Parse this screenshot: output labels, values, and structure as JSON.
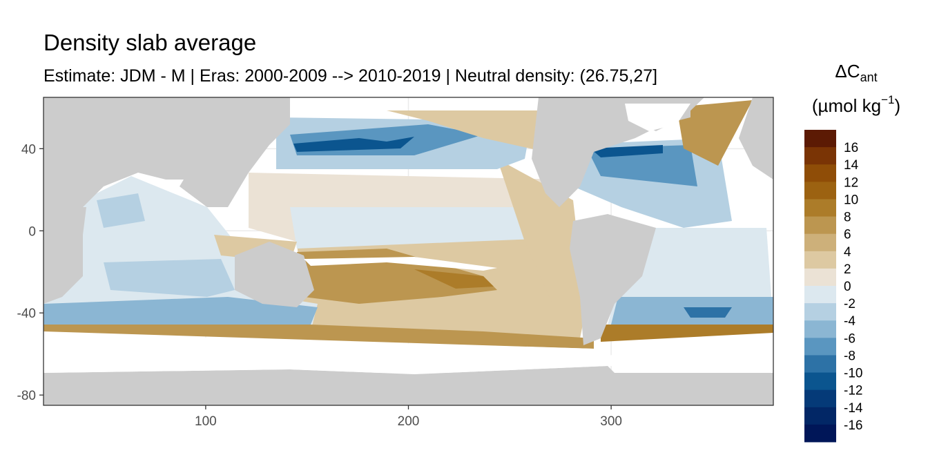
{
  "chart_data": {
    "type": "heatmap",
    "title": "Density slab average",
    "subtitle": "Estimate: JDM - M | Eras: 2000-2009 --> 2010-2019 | Neutral density: (26.75,27]",
    "xlabel": "",
    "ylabel": "",
    "xlim": [
      20,
      380
    ],
    "ylim": [
      -85,
      65
    ],
    "x_ticks": [
      100,
      200,
      300
    ],
    "y_ticks": [
      40,
      0,
      -40,
      -80
    ],
    "grid": true,
    "legend_position": "right",
    "legend": {
      "title_main": "ΔC",
      "title_sub": "ant",
      "title_units": "(µmol kg",
      "title_units_sup": "−1",
      "title_units_close": ")",
      "labels": [
        "16",
        "14",
        "12",
        "10",
        "8",
        "6",
        "4",
        "2",
        "0",
        "-2",
        "-4",
        "-6",
        "-8",
        "-10",
        "-12",
        "-14",
        "-16"
      ],
      "colors": [
        "#5c1a04",
        "#7a3405",
        "#8f4d07",
        "#9c6211",
        "#ac7c29",
        "#bc9650",
        "#cdb07a",
        "#ddc9a2",
        "#ebe2d5",
        "#dce8ef",
        "#b5d0e2",
        "#8bb6d3",
        "#5a96c0",
        "#2d72a6",
        "#0b558f",
        "#053a78",
        "#022766",
        "#001658"
      ]
    },
    "land_color": "#cccccc",
    "nodata_color": "#ffffff",
    "panel_background": "#ffffff",
    "grid_color": "#ebebeb"
  }
}
